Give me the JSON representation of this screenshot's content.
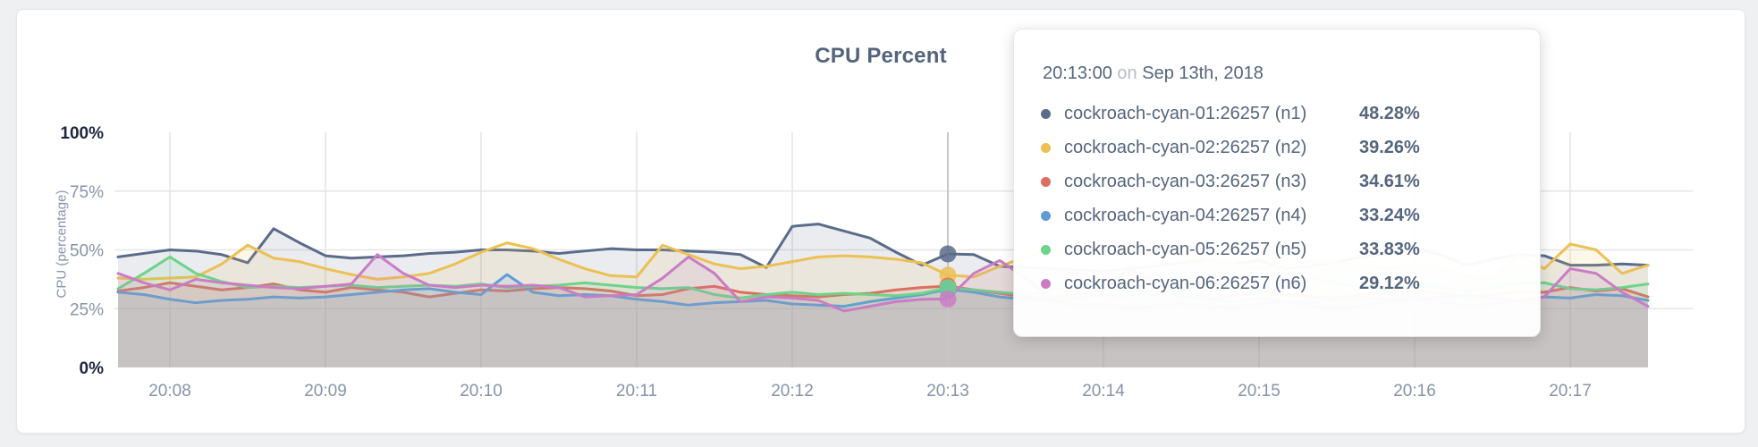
{
  "page": {
    "background": "#eef0f2"
  },
  "card": {
    "background": "#ffffff",
    "border_color": "#e4e6ea"
  },
  "chart_data": {
    "type": "line",
    "variant": "area-line",
    "title": "CPU Percent",
    "xlabel": "",
    "ylabel": "CPU (percentage)",
    "ylim": [
      0,
      100
    ],
    "grid": true,
    "x_start": "20:07:40",
    "x_step_seconds": 10,
    "xticks": [
      "20:08",
      "20:09",
      "20:10",
      "20:11",
      "20:12",
      "20:13",
      "20:14",
      "20:15",
      "20:16",
      "20:17"
    ],
    "yticks": [
      {
        "label": "0%",
        "value": 0,
        "grid": false,
        "strong": true
      },
      {
        "label": "25%",
        "value": 25,
        "grid": true,
        "strong": false
      },
      {
        "label": "50%",
        "value": 50,
        "grid": true,
        "strong": false
      },
      {
        "label": "75%",
        "value": 75,
        "grid": true,
        "strong": false
      },
      {
        "label": "100%",
        "value": 100,
        "grid": false,
        "strong": true
      }
    ],
    "hover_index": 32,
    "hover_time": "20:13:00",
    "series": [
      {
        "name": "cockroach-cyan-01:26257 (n1)",
        "node": "n1",
        "color": "#5a6c8a",
        "values": [
          47,
          48.5,
          50,
          49.5,
          48,
          44.5,
          59,
          53,
          47.5,
          46.5,
          47,
          47.5,
          48.5,
          49,
          50,
          50,
          49.5,
          48.5,
          49.5,
          50.5,
          50,
          50,
          49.5,
          49,
          48,
          42.5,
          60,
          61,
          58,
          55,
          49,
          43.5,
          48.28,
          48,
          43,
          42.5,
          42,
          41.5,
          41,
          42,
          43,
          44.5,
          46,
          44,
          45.5,
          42,
          43,
          45,
          47,
          48.5,
          50.5,
          48,
          43.5,
          46,
          48,
          47.5,
          43.5,
          43.5,
          44,
          43.5
        ]
      },
      {
        "name": "cockroach-cyan-02:26257 (n2)",
        "node": "n2",
        "color": "#ecc052",
        "values": [
          38,
          37.5,
          38,
          38.5,
          44,
          52,
          46.5,
          45,
          42,
          39.5,
          37.5,
          38.5,
          40,
          44,
          49,
          53,
          50.5,
          46,
          42,
          39,
          38.5,
          52,
          48,
          44,
          42,
          43,
          45,
          47,
          47.5,
          47,
          46,
          44.5,
          39.26,
          38.5,
          43,
          47,
          50.5,
          51,
          50,
          50.5,
          51,
          48,
          46,
          44,
          42,
          43.5,
          45,
          44.5,
          43,
          42,
          44,
          42.5,
          38.5,
          38,
          48,
          42,
          52.5,
          50,
          40,
          43.5
        ]
      },
      {
        "name": "cockroach-cyan-03:26257 (n3)",
        "node": "n3",
        "color": "#dd6e63",
        "values": [
          32.5,
          34,
          36,
          34.5,
          33,
          34,
          35.5,
          33,
          32,
          34,
          33,
          32,
          30,
          31.5,
          33,
          32.5,
          33.5,
          34,
          33.5,
          32.5,
          30.5,
          31,
          33.5,
          34.5,
          32,
          31,
          30.5,
          30,
          31,
          31.5,
          33,
          34,
          34.61,
          33,
          31.5,
          30,
          29.5,
          31,
          33,
          42,
          36,
          30,
          29,
          30.5,
          32,
          31,
          30,
          29.5,
          31,
          32,
          33,
          31.5,
          30,
          31,
          32,
          32,
          34,
          32.5,
          33.5,
          30
        ]
      },
      {
        "name": "cockroach-cyan-04:26257 (n4)",
        "node": "n4",
        "color": "#609bd8",
        "values": [
          32,
          31,
          29,
          27.5,
          28.5,
          29,
          30,
          29.5,
          30,
          31,
          32,
          33,
          33.5,
          32,
          31,
          39.5,
          32,
          30.5,
          31,
          30.5,
          29,
          28,
          26.5,
          27.5,
          28,
          28.5,
          27,
          26.5,
          26,
          28,
          29.5,
          31,
          33.24,
          32,
          30,
          29,
          28,
          29.5,
          31,
          30,
          40,
          34,
          29,
          28,
          29.5,
          28,
          27.5,
          29,
          30,
          29,
          28.5,
          30,
          31,
          29.5,
          28,
          30,
          29.5,
          31,
          30.5,
          28.5
        ]
      },
      {
        "name": "cockroach-cyan-05:26257 (n5)",
        "node": "n5",
        "color": "#6dd38b",
        "values": [
          33.5,
          40,
          47,
          40,
          36.5,
          34,
          34.5,
          34,
          34.5,
          35,
          34,
          34.5,
          35,
          34.5,
          35.5,
          34,
          34.5,
          35,
          36,
          35,
          34,
          33.5,
          34,
          31,
          29.5,
          31,
          32,
          31,
          31.5,
          31,
          30.5,
          31.5,
          33.83,
          33,
          32,
          31,
          33,
          35,
          34,
          32,
          31,
          33,
          36,
          34,
          32.5,
          34,
          38,
          36,
          34,
          33,
          35,
          34,
          32.5,
          34,
          36,
          36,
          33.5,
          33,
          34,
          35.5
        ]
      },
      {
        "name": "cockroach-cyan-06:26257 (n6)",
        "node": "n6",
        "color": "#ca7cc5",
        "values": [
          40,
          36,
          33,
          37.5,
          36,
          35,
          34,
          33.5,
          34.5,
          35.5,
          48,
          40,
          35,
          34,
          35,
          34.5,
          35,
          34,
          30,
          30.5,
          31,
          38,
          47,
          40,
          28,
          30,
          29.5,
          28.5,
          24,
          26,
          28,
          29,
          29.12,
          40,
          45.5,
          38,
          29,
          26,
          27,
          25,
          26,
          27,
          26,
          25.5,
          27,
          28,
          26,
          25,
          26,
          28,
          30,
          28,
          26,
          27,
          28.5,
          30,
          42,
          40,
          32,
          26
        ]
      }
    ]
  },
  "tooltip": {
    "time": "20:13:00",
    "preposition": "on",
    "date": "Sep 13th, 2018",
    "rows": [
      {
        "label": "cockroach-cyan-01:26257 (n1)",
        "value": "48.28%",
        "color": "#5a6c8a"
      },
      {
        "label": "cockroach-cyan-02:26257 (n2)",
        "value": "39.26%",
        "color": "#ecc052"
      },
      {
        "label": "cockroach-cyan-03:26257 (n3)",
        "value": "34.61%",
        "color": "#dd6e63"
      },
      {
        "label": "cockroach-cyan-04:26257 (n4)",
        "value": "33.24%",
        "color": "#609bd8"
      },
      {
        "label": "cockroach-cyan-05:26257 (n5)",
        "value": "33.83%",
        "color": "#6dd38b"
      },
      {
        "label": "cockroach-cyan-06:26257 (n6)",
        "value": "29.12%",
        "color": "#ca7cc5"
      }
    ]
  }
}
